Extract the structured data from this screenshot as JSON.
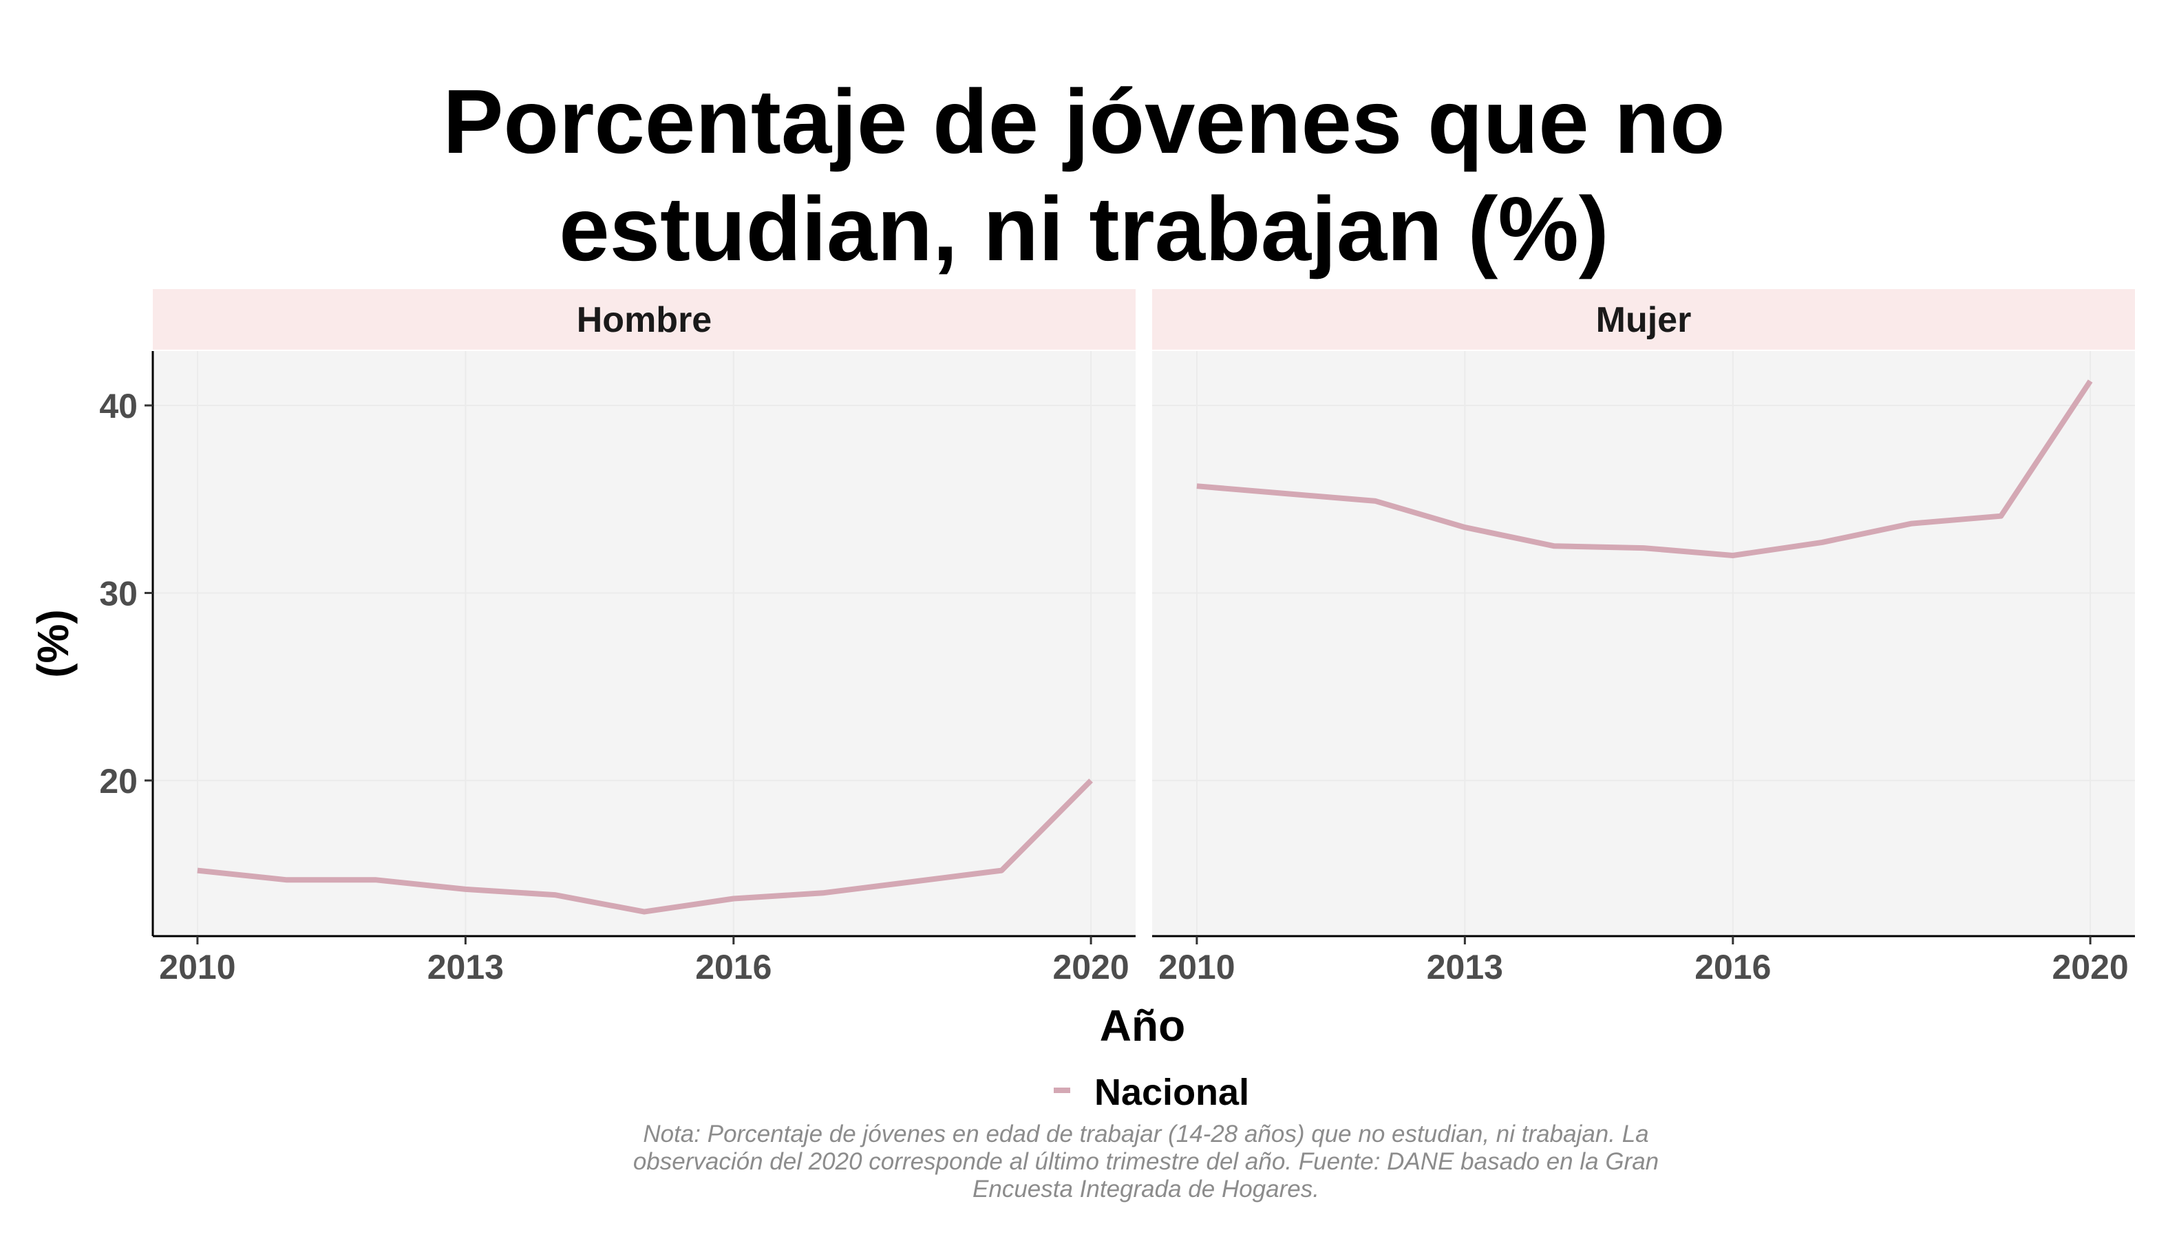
{
  "title": {
    "line1": "Porcentaje de jóvenes que no",
    "line2": "estudian, ni trabajan (%)"
  },
  "chart_data": {
    "type": "line",
    "title": "Porcentaje de jóvenes que no estudian, ni trabajan (%)",
    "xlabel": "Año",
    "ylabel": "(%)",
    "xlim": [
      2009.5,
      2020.5
    ],
    "ylim": [
      11.7,
      42.9
    ],
    "x_ticks": [
      2010,
      2013,
      2016,
      2020
    ],
    "y_ticks": [
      20,
      30,
      40
    ],
    "grid": true,
    "legend": {
      "position": "bottom",
      "entries": [
        "Nacional"
      ]
    },
    "colors": {
      "line": "#d4a8b4",
      "panel_bg": "#f4f4f4",
      "strip_bg": "#faeaea",
      "grid": "#ebebeb"
    },
    "panels": [
      {
        "name": "Hombre",
        "series": [
          {
            "name": "Nacional",
            "x": [
              2010,
              2011,
              2012,
              2013,
              2014,
              2015,
              2016,
              2017,
              2018,
              2019,
              2020
            ],
            "y": [
              15.2,
              14.7,
              14.7,
              14.2,
              13.9,
              13.0,
              13.7,
              14.0,
              14.6,
              15.2,
              20.0
            ]
          }
        ]
      },
      {
        "name": "Mujer",
        "series": [
          {
            "name": "Nacional",
            "x": [
              2010,
              2011,
              2012,
              2013,
              2014,
              2015,
              2016,
              2017,
              2018,
              2019,
              2020
            ],
            "y": [
              35.7,
              35.3,
              34.9,
              33.5,
              32.5,
              32.4,
              32.0,
              32.7,
              33.7,
              34.1,
              41.3
            ]
          }
        ]
      }
    ]
  },
  "note": {
    "line1": "Nota: Porcentaje de jóvenes en edad de trabajar (14-28 años) que no estudian, ni trabajan. La",
    "line2": "observación del 2020 corresponde al último trimestre del año. Fuente: DANE basado en la Gran",
    "line3": "Encuesta Integrada de Hogares."
  }
}
